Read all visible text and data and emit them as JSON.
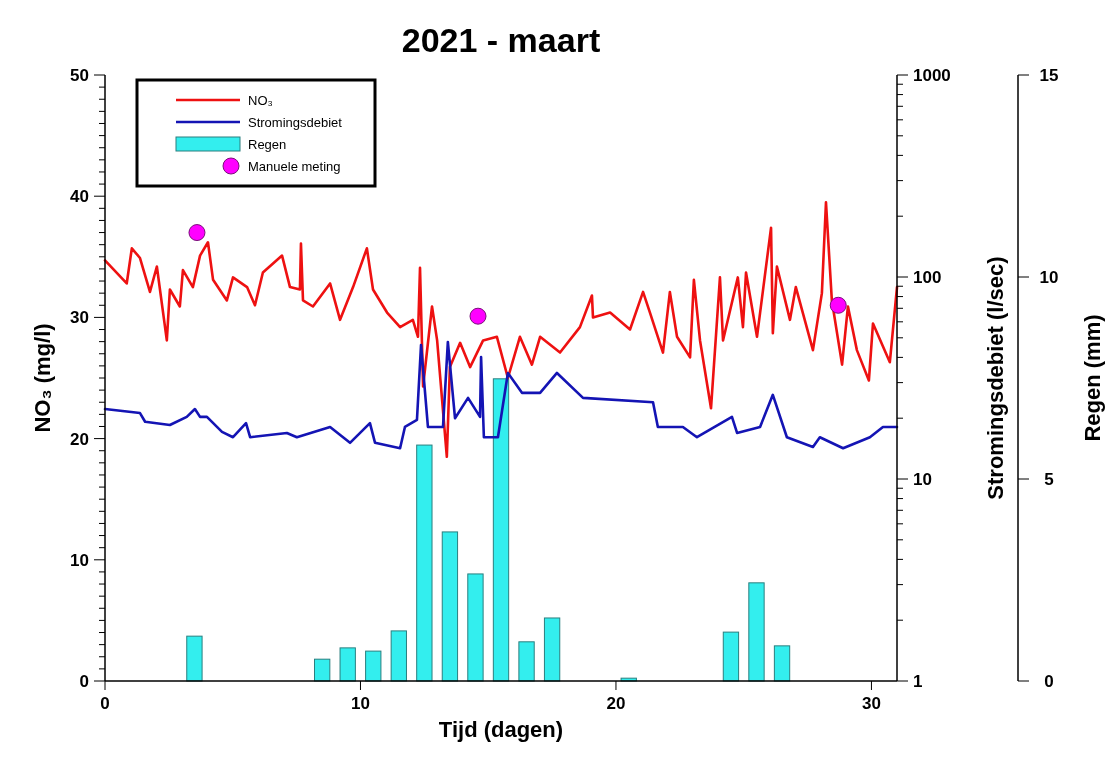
{
  "chart_data": {
    "type": "line",
    "title": "2021 - maart",
    "xlabel": "Tijd (dagen)",
    "ylabel": "NO₃ (mg/l)",
    "y2label": "Stromingsdebiet (l/sec)",
    "y3label": "Regen (mm)",
    "xlim": [
      0,
      31
    ],
    "xticks": [
      0,
      10,
      20,
      30
    ],
    "ylim": [
      0,
      50
    ],
    "yticks": [
      0,
      {
        "value": 1,
        "label": null
      },
      {
        "value": 2,
        "label": null
      },
      {
        "value": 3,
        "label": null
      },
      {
        "value": 4,
        "label": null
      },
      {
        "value": 5,
        "label": null
      },
      {
        "value": 6,
        "label": null
      },
      {
        "value": 7,
        "label": null
      },
      {
        "value": 8,
        "label": null
      },
      {
        "value": 9,
        "label": null
      },
      10,
      {
        "value": 11,
        "label": null
      },
      {
        "value": 12,
        "label": null
      },
      {
        "value": 13,
        "label": null
      },
      {
        "value": 14,
        "label": null
      },
      {
        "value": 15,
        "label": null
      },
      {
        "value": 16,
        "label": null
      },
      {
        "value": 17,
        "label": null
      },
      {
        "value": 18,
        "label": null
      },
      {
        "value": 19,
        "label": null
      },
      20,
      {
        "value": 21,
        "label": null
      },
      {
        "value": 22,
        "label": null
      },
      {
        "value": 23,
        "label": null
      },
      {
        "value": 24,
        "label": null
      },
      {
        "value": 25,
        "label": null
      },
      {
        "value": 26,
        "label": null
      },
      {
        "value": 27,
        "label": null
      },
      {
        "value": 28,
        "label": null
      },
      {
        "value": 29,
        "label": null
      },
      30,
      {
        "value": 31,
        "label": null
      },
      {
        "value": 32,
        "label": null
      },
      {
        "value": 33,
        "label": null
      },
      {
        "value": 34,
        "label": null
      },
      {
        "value": 35,
        "label": null
      },
      {
        "value": 36,
        "label": null
      },
      {
        "value": 37,
        "label": null
      },
      {
        "value": 38,
        "label": null
      },
      {
        "value": 39,
        "label": null
      },
      40,
      {
        "value": 41,
        "label": null
      },
      {
        "value": 42,
        "label": null
      },
      {
        "value": 43,
        "label": null
      },
      {
        "value": 44,
        "label": null
      },
      {
        "value": 45,
        "label": null
      },
      {
        "value": 46,
        "label": null
      },
      {
        "value": 47,
        "label": null
      },
      {
        "value": 48,
        "label": null
      },
      {
        "value": 49,
        "label": null
      },
      50
    ],
    "y2lim": [
      1,
      1000
    ],
    "y2ticks": [
      1,
      {
        "value": 2,
        "label": null
      },
      {
        "value": 3,
        "label": null
      },
      {
        "value": 4,
        "label": null
      },
      {
        "value": 5,
        "label": null
      },
      {
        "value": 6,
        "label": null
      },
      {
        "value": 7,
        "label": null
      },
      {
        "value": 8,
        "label": null
      },
      {
        "value": 9,
        "label": null
      },
      10,
      {
        "value": 20,
        "label": null
      },
      {
        "value": 30,
        "label": null
      },
      {
        "value": 40,
        "label": null
      },
      {
        "value": 50,
        "label": null
      },
      {
        "value": 60,
        "label": null
      },
      {
        "value": 70,
        "label": null
      },
      {
        "value": 80,
        "label": null
      },
      {
        "value": 90,
        "label": null
      },
      100,
      {
        "value": 200,
        "label": null
      },
      {
        "value": 300,
        "label": null
      },
      {
        "value": 400,
        "label": null
      },
      {
        "value": 500,
        "label": null
      },
      {
        "value": 600,
        "label": null
      },
      {
        "value": 700,
        "label": null
      },
      {
        "value": 800,
        "label": null
      },
      {
        "value": 900,
        "label": null
      },
      1000
    ],
    "y3lim": [
      0,
      15
    ],
    "y3ticks": [
      0,
      5,
      10,
      15
    ],
    "log": "y2",
    "legend": "top left",
    "grid": false,
    "series": [
      {
        "name": "NO₃",
        "color": "#ee1111",
        "axis": "y",
        "marker": "none",
        "line_style": "solid",
        "x": [
          0,
          0.85,
          1.05,
          1.37,
          1.76,
          2.03,
          2.42,
          2.54,
          2.93,
          3.05,
          3.44,
          3.72,
          4.03,
          4.23,
          4.77,
          5.01,
          5.56,
          5.87,
          6.18,
          6.93,
          7.24,
          7.63,
          7.67,
          7.75,
          8.14,
          8.81,
          9.2,
          9.71,
          10.25,
          10.49,
          11.04,
          11.55,
          12.05,
          12.25,
          12.33,
          12.45,
          12.8,
          13.0,
          13.38,
          13.5,
          13.9,
          14.29,
          14.8,
          15.34,
          15.77,
          16.24,
          16.71,
          17.03,
          17.81,
          18.59,
          19.06,
          19.1,
          19.77,
          20.55,
          21.06,
          21.33,
          21.84,
          22.11,
          22.39,
          22.9,
          23.05,
          23.29,
          23.72,
          24.07,
          24.19,
          24.77,
          24.97,
          25.09,
          25.52,
          26.07,
          26.14,
          26.3,
          26.81,
          27.04,
          27.71,
          28.06,
          28.22,
          28.45,
          28.85,
          29.08,
          29.43,
          29.9,
          30.06,
          30.72,
          31.0
        ],
        "values": [
          34.7,
          32.8,
          35.7,
          34.9,
          32.1,
          34.2,
          28.1,
          32.3,
          30.9,
          33.9,
          32.5,
          35.1,
          36.2,
          33.1,
          31.4,
          33.3,
          32.5,
          31.0,
          33.7,
          35.1,
          32.5,
          32.3,
          36.1,
          31.4,
          30.9,
          32.8,
          29.8,
          32.5,
          35.7,
          32.3,
          30.4,
          29.2,
          29.8,
          28.4,
          34.1,
          24.3,
          30.9,
          28.1,
          18.5,
          25.9,
          27.9,
          25.9,
          28.1,
          28.4,
          25.0,
          28.4,
          26.1,
          28.4,
          27.1,
          29.2,
          31.8,
          30.0,
          30.4,
          29.0,
          32.1,
          30.4,
          27.1,
          32.1,
          28.4,
          26.7,
          33.1,
          28.1,
          22.5,
          33.3,
          28.1,
          33.3,
          29.2,
          33.7,
          28.4,
          37.4,
          28.7,
          34.2,
          29.8,
          32.5,
          27.3,
          32.0,
          39.5,
          31.4,
          26.1,
          30.9,
          27.3,
          24.8,
          29.5,
          26.3,
          32.5
        ]
      },
      {
        "name": "Stromingsdebiet",
        "color": "#1414b4",
        "axis": "y2",
        "marker": "none",
        "line_style": "solid",
        "x": [
          0,
          1.37,
          1.57,
          2.54,
          3.2,
          3.52,
          3.72,
          3.99,
          4.58,
          5.01,
          5.52,
          5.68,
          7.12,
          7.51,
          8.81,
          9.59,
          10.37,
          10.57,
          11.55,
          11.74,
          12.21,
          12.37,
          12.64,
          13.23,
          13.42,
          13.7,
          14.21,
          14.68,
          14.72,
          14.83,
          15.38,
          15.77,
          16.32,
          17.03,
          17.69,
          18.71,
          21.45,
          21.64,
          22.62,
          23.17,
          24.54,
          24.74,
          25.64,
          26.14,
          26.69,
          27.71,
          27.98,
          28.89,
          29.94,
          30.45,
          31.0
        ],
        "values": [
          22.2,
          21.2,
          19.2,
          18.5,
          20.3,
          22.2,
          20.3,
          20.3,
          17.1,
          16.1,
          18.9,
          16.1,
          16.9,
          16.1,
          18.1,
          15.1,
          18.9,
          15.1,
          14.2,
          18.1,
          19.6,
          46.1,
          18.1,
          18.1,
          47.7,
          20.0,
          25.2,
          20.3,
          40.2,
          16.1,
          16.1,
          33.5,
          26.7,
          26.7,
          33.5,
          25.2,
          24.0,
          18.1,
          18.1,
          16.1,
          20.3,
          16.9,
          18.1,
          26.1,
          16.1,
          14.4,
          16.1,
          14.2,
          16.1,
          18.1,
          18.1
        ]
      },
      {
        "name": "Regen",
        "type": "bar",
        "color": "#33eeee",
        "axis": "y3",
        "x": [
          3.5,
          8.5,
          9.5,
          10.5,
          11.5,
          12.5,
          13.5,
          14.5,
          15.5,
          16.5,
          17.5,
          20.5,
          24.5,
          25.5,
          26.5
        ],
        "values": [
          1.11,
          0.54,
          0.82,
          0.74,
          1.24,
          5.84,
          3.69,
          2.65,
          7.48,
          0.97,
          1.56,
          0.07,
          1.21,
          2.43,
          0.87
        ]
      },
      {
        "name": "Manuele meting",
        "type": "scatter",
        "color": "#ff00ff",
        "axis": "y",
        "marker": "circle",
        "x": [
          3.6,
          14.6,
          28.7
        ],
        "values": [
          37.0,
          30.1,
          31.0
        ]
      }
    ]
  }
}
